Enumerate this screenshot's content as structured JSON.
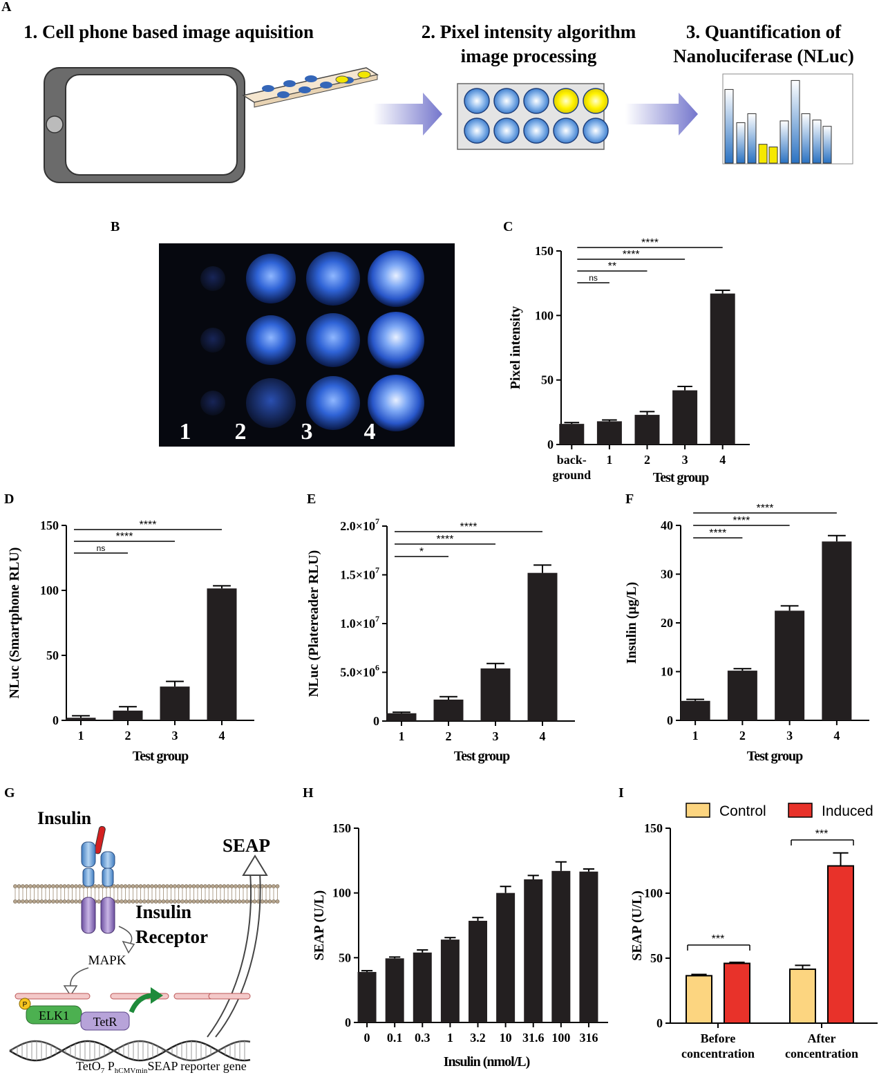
{
  "panel_letters": [
    "A",
    "B",
    "C",
    "D",
    "E",
    "F",
    "G",
    "H",
    "I"
  ],
  "panel_a": {
    "step1": "1. Cell phone based image aquisition",
    "step2_line1": "2. Pixel intensity algorithm",
    "step2_line2": "image processing",
    "step3_line1": "3. Quantification of",
    "step3_line2": "Nanoluciferase (NLuc)",
    "colors": {
      "well_blue": "#3d7fd0",
      "well_yellow": "#f2e600",
      "arrow": "#7c7fd0"
    }
  },
  "panel_b": {
    "well_labels": [
      "1",
      "2",
      "3",
      "4"
    ]
  },
  "panel_g": {
    "insulin": "Insulin",
    "receptor_line1": "Insulin",
    "receptor_line2": "Receptor",
    "seap": "SEAP",
    "mapk": "MAPK",
    "elk1": "ELK1",
    "p": "P",
    "tetr": "TetR",
    "reporter_a": "TetO",
    "reporter_sub7": "7",
    "reporter_b": " P",
    "reporter_sub": "hCMVmin",
    "reporter_c": "SEAP reporter gene"
  },
  "chart_data": [
    {
      "panel": "C",
      "type": "bar",
      "categories": [
        "back-\nground",
        "1",
        "2",
        "3",
        "4"
      ],
      "values": [
        16,
        18,
        23,
        42,
        117
      ],
      "errors": [
        1,
        1,
        2.5,
        3,
        2.5
      ],
      "xlabel": "Test group",
      "ylabel": "Pixel intensity",
      "ylim": [
        0,
        150
      ],
      "yticks": [
        "0",
        "50",
        "100",
        "150"
      ],
      "significance": [
        {
          "from": 0,
          "to": 1,
          "label": "ns"
        },
        {
          "from": 0,
          "to": 2,
          "label": "**"
        },
        {
          "from": 0,
          "to": 3,
          "label": "****"
        },
        {
          "from": 0,
          "to": 4,
          "label": "****"
        }
      ]
    },
    {
      "panel": "D",
      "type": "bar",
      "categories": [
        "1",
        "2",
        "3",
        "4"
      ],
      "values": [
        2,
        7.5,
        26,
        101.5
      ],
      "errors": [
        1.5,
        3,
        4,
        2
      ],
      "xlabel": "Test group",
      "ylabel": "NLuc (Smartphone RLU)",
      "ylim": [
        0,
        150
      ],
      "yticks": [
        "0",
        "50",
        "100",
        "150"
      ],
      "significance": [
        {
          "from": 0,
          "to": 1,
          "label": "ns"
        },
        {
          "from": 0,
          "to": 2,
          "label": "****"
        },
        {
          "from": 0,
          "to": 3,
          "label": "****"
        }
      ]
    },
    {
      "panel": "E",
      "type": "bar",
      "categories": [
        "1",
        "2",
        "3",
        "4"
      ],
      "values": [
        800000,
        2200000,
        5400000,
        15200000
      ],
      "errors": [
        100000,
        300000,
        500000,
        800000
      ],
      "xlabel": "Test group",
      "ylabel": "NLuc (Platereader RLU)",
      "ylim": [
        0,
        20000000
      ],
      "ytick_labels": [
        {
          "m": "0",
          "e": ""
        },
        {
          "m": "5.0×10",
          "e": "6"
        },
        {
          "m": "1.0×10",
          "e": "7"
        },
        {
          "m": "1.5×10",
          "e": "7"
        },
        {
          "m": "2.0×10",
          "e": "7"
        }
      ],
      "significance": [
        {
          "from": 0,
          "to": 1,
          "label": "*"
        },
        {
          "from": 0,
          "to": 2,
          "label": "****"
        },
        {
          "from": 0,
          "to": 3,
          "label": "****"
        }
      ]
    },
    {
      "panel": "F",
      "type": "bar",
      "categories": [
        "1",
        "2",
        "3",
        "4"
      ],
      "values": [
        4,
        10.2,
        22.5,
        36.7
      ],
      "errors": [
        0.3,
        0.4,
        1,
        1.2
      ],
      "xlabel": "Test group",
      "ylabel": "Insulin (μg/L)",
      "ylim": [
        0,
        40
      ],
      "yticks": [
        "0",
        "10",
        "20",
        "30",
        "40"
      ],
      "significance": [
        {
          "from": 0,
          "to": 1,
          "label": "****"
        },
        {
          "from": 0,
          "to": 2,
          "label": "****"
        },
        {
          "from": 0,
          "to": 3,
          "label": "****"
        }
      ]
    },
    {
      "panel": "H",
      "type": "bar",
      "categories": [
        "0",
        "0.1",
        "0.3",
        "1",
        "3.2",
        "10",
        "31.6",
        "100",
        "316"
      ],
      "values": [
        39,
        49.5,
        54,
        64,
        78.5,
        100,
        110.5,
        117,
        116.5
      ],
      "errors": [
        1,
        1,
        2,
        1.5,
        2.5,
        5,
        3,
        7,
        2
      ],
      "xlabel": "Insulin (nmol/L)",
      "ylabel": "SEAP (U/L)",
      "ylim": [
        0,
        150
      ],
      "yticks": [
        "0",
        "50",
        "100",
        "150"
      ],
      "significance": []
    },
    {
      "panel": "I",
      "type": "bar",
      "categories": [
        "Before\nconcentration",
        "After\nconcentration"
      ],
      "series": [
        {
          "name": "Control",
          "values": [
            36.5,
            41.5
          ],
          "errors": [
            1,
            3
          ],
          "color": "#fcd580"
        },
        {
          "name": "Induced",
          "values": [
            46,
            121
          ],
          "errors": [
            0.8,
            10
          ],
          "color": "#e8322a"
        }
      ],
      "ylabel": "SEAP (U/L)",
      "ylim": [
        0,
        150
      ],
      "yticks": [
        "0",
        "50",
        "100",
        "150"
      ],
      "legend": "top",
      "significance": [
        {
          "group": 0,
          "label": "***"
        },
        {
          "group": 1,
          "label": "***"
        }
      ]
    }
  ]
}
